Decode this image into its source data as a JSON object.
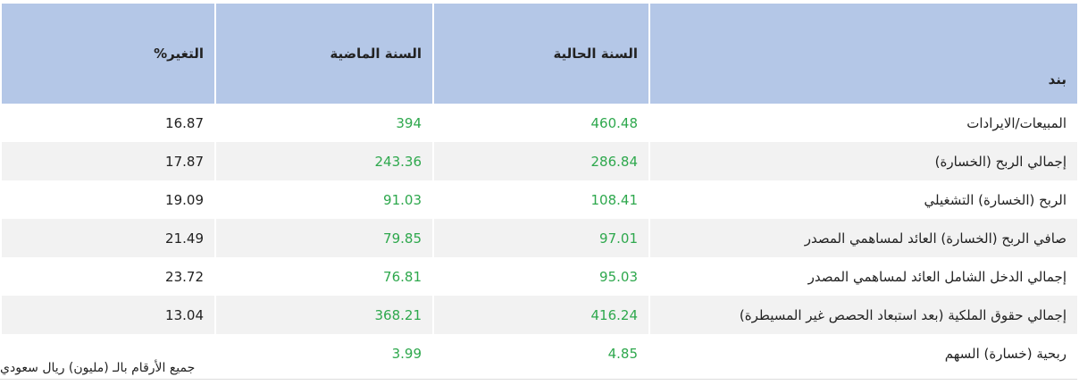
{
  "table": {
    "headers": [
      "بند",
      "السنة الحالية",
      "السنة الماضية",
      "التغير%"
    ],
    "rows": [
      [
        "المبيعات/الايرادات",
        "460.48",
        "394",
        "16.87"
      ],
      [
        "إجمالي الربح (الخسارة)",
        "286.84",
        "243.36",
        "17.87"
      ],
      [
        "الربح (الخسارة) التشغيلي",
        "108.41",
        "91.03",
        "19.09"
      ],
      [
        "صافي الربح (الخسارة) العائد لمساهمي المصدر",
        "97.01",
        "79.85",
        "21.49"
      ],
      [
        "إجمالي الدخل الشامل العائد لمساهمي المصدر",
        "95.03",
        "76.81",
        "23.72"
      ],
      [
        "إجمالي حقوق الملكية (بعد استبعاد الحصص غير المسيطرة)",
        "416.24",
        "368.21",
        "13.04"
      ],
      [
        "ربحية (خسارة) السهم",
        "4.85",
        "3.99"
      ]
    ]
  },
  "footnote": "جميع الأرقام بالـ (مليون) ريال سعودي"
}
